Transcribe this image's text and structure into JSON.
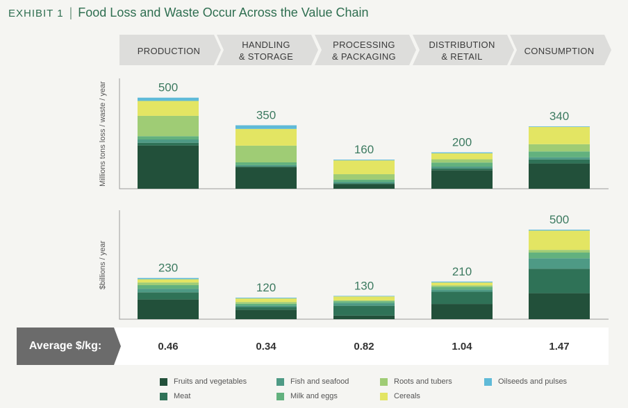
{
  "title": {
    "exhibit": "EXHIBIT 1",
    "separator": "|",
    "text": "Food Loss and Waste Occur Across the Value Chain"
  },
  "stages": [
    {
      "label": "PRODUCTION"
    },
    {
      "label": "HANDLING\n& STORAGE"
    },
    {
      "label": "PROCESSING\n& PACKAGING"
    },
    {
      "label": "DISTRIBUTION\n& RETAIL"
    },
    {
      "label": "CONSUMPTION"
    }
  ],
  "average": {
    "label": "Average $/kg:",
    "values": [
      "0.46",
      "0.34",
      "0.82",
      "1.04",
      "1.47"
    ]
  },
  "colors": {
    "fruits_and_vegetables": "#22503a",
    "meat": "#2f7257",
    "fish_and_seafood": "#4e9a85",
    "milk_and_eggs": "#62b17e",
    "roots_and_tubers": "#9fcc75",
    "cereals": "#e3e563",
    "oilseeds_and_pulses": "#5fbad8",
    "chevron": "#dddddb",
    "avg_label_bg": "#6b6b6b"
  },
  "legend": [
    {
      "key": "fruits_and_vegetables",
      "label": "Fruits and vegetables"
    },
    {
      "key": "fish_and_seafood",
      "label": "Fish and seafood"
    },
    {
      "key": "roots_and_tubers",
      "label": "Roots and tubers"
    },
    {
      "key": "oilseeds_and_pulses",
      "label": "Oilseeds and pulses"
    },
    {
      "key": "meat",
      "label": "Meat"
    },
    {
      "key": "milk_and_eggs",
      "label": "Milk and eggs"
    },
    {
      "key": "cereals",
      "label": "Cereals"
    }
  ],
  "chart_data": [
    {
      "type": "bar",
      "stacked": true,
      "ylabel": "Millions tons loss / waste / year",
      "ylim": [
        0,
        575
      ],
      "categories": [
        "PRODUCTION",
        "HANDLING & STORAGE",
        "PROCESSING & PACKAGING",
        "DISTRIBUTION & RETAIL",
        "CONSUMPTION"
      ],
      "totals": [
        "500",
        "350",
        "160",
        "200",
        "340"
      ],
      "series": [
        {
          "name": "Fruits and vegetables",
          "key": "fruits_and_vegetables",
          "values": [
            238,
            118,
            25,
            102,
            139
          ]
        },
        {
          "name": "Meat",
          "key": "meat",
          "values": [
            15,
            5,
            5,
            10,
            22
          ]
        },
        {
          "name": "Fish and seafood",
          "key": "fish_and_seafood",
          "values": [
            18,
            7,
            8,
            10,
            12
          ]
        },
        {
          "name": "Milk and eggs",
          "key": "milk_and_eggs",
          "values": [
            18,
            15,
            12,
            22,
            32
          ]
        },
        {
          "name": "Roots and tubers",
          "key": "roots_and_tubers",
          "values": [
            112,
            92,
            30,
            18,
            40
          ]
        },
        {
          "name": "Cereals",
          "key": "cereals",
          "values": [
            82,
            92,
            76,
            33,
            95
          ]
        },
        {
          "name": "Oilseeds and pulses",
          "key": "oilseeds_and_pulses",
          "values": [
            18,
            20,
            4,
            5,
            3
          ]
        }
      ]
    },
    {
      "type": "bar",
      "stacked": true,
      "ylabel": "$billions / year",
      "ylim": [
        0,
        575
      ],
      "categories": [
        "PRODUCTION",
        "HANDLING & STORAGE",
        "PROCESSING & PACKAGING",
        "DISTRIBUTION & RETAIL",
        "CONSUMPTION"
      ],
      "totals": [
        "230",
        "120",
        "130",
        "210",
        "500"
      ],
      "series": [
        {
          "name": "Fruits and vegetables",
          "key": "fruits_and_vegetables",
          "values": [
            110,
            53,
            20,
            85,
            145
          ]
        },
        {
          "name": "Meat",
          "key": "meat",
          "values": [
            40,
            15,
            55,
            68,
            137
          ]
        },
        {
          "name": "Fish and seafood",
          "key": "fish_and_seafood",
          "values": [
            20,
            8,
            15,
            13,
            58
          ]
        },
        {
          "name": "Milk and eggs",
          "key": "milk_and_eggs",
          "values": [
            20,
            10,
            10,
            15,
            32
          ]
        },
        {
          "name": "Roots and tubers",
          "key": "roots_and_tubers",
          "values": [
            15,
            10,
            5,
            8,
            15
          ]
        },
        {
          "name": "Cereals",
          "key": "cereals",
          "values": [
            18,
            20,
            22,
            16,
            108
          ]
        },
        {
          "name": "Oilseeds and pulses",
          "key": "oilseeds_and_pulses",
          "values": [
            7,
            4,
            3,
            5,
            5
          ]
        }
      ]
    }
  ]
}
